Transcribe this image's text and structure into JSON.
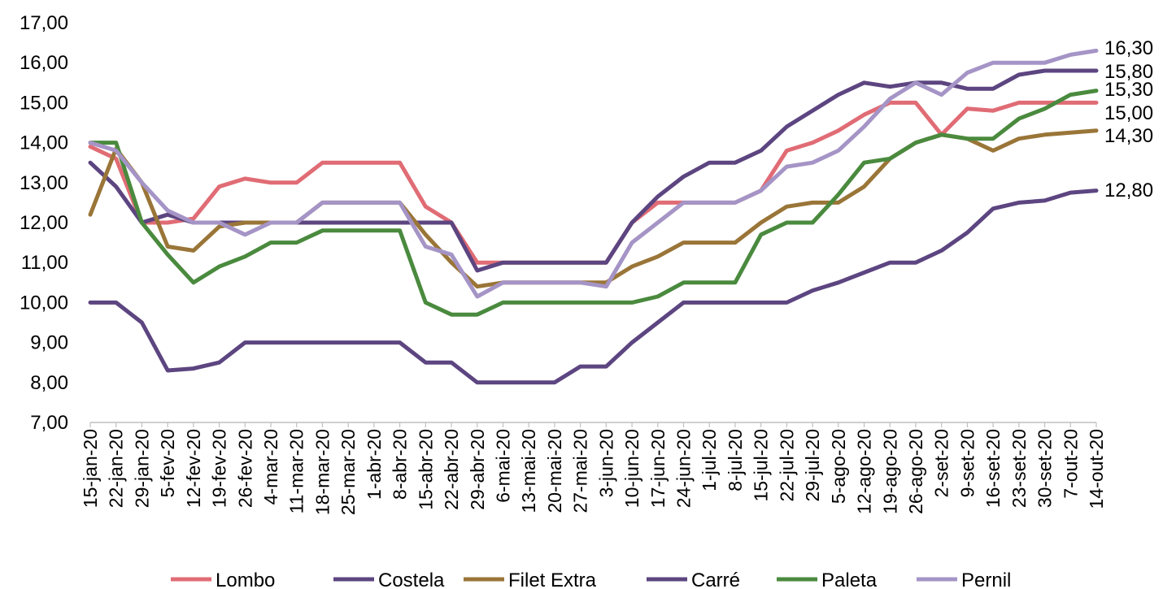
{
  "chart_data": {
    "type": "line",
    "title": "",
    "xlabel": "",
    "ylabel": "",
    "ylim": [
      7,
      17
    ],
    "y_ticks": [
      "7,00",
      "8,00",
      "9,00",
      "10,00",
      "11,00",
      "12,00",
      "13,00",
      "14,00",
      "15,00",
      "16,00",
      "17,00"
    ],
    "grid": false,
    "legend_position": "bottom",
    "categories": [
      "15-jan-20",
      "22-jan-20",
      "29-jan-20",
      "5-fev-20",
      "12-fev-20",
      "19-fev-20",
      "26-fev-20",
      "4-mar-20",
      "11-mar-20",
      "18-mar-20",
      "25-mar-20",
      "1-abr-20",
      "8-abr-20",
      "15-abr-20",
      "22-abr-20",
      "29-abr-20",
      "6-mai-20",
      "13-mai-20",
      "20-mai-20",
      "27-mai-20",
      "3-jun-20",
      "10-jun-20",
      "17-jun-20",
      "24-jun-20",
      "1-jul-20",
      "8-jul-20",
      "15-jul-20",
      "22-jul-20",
      "29-jul-20",
      "5-ago-20",
      "12-ago-20",
      "19-ago-20",
      "26-ago-20",
      "2-set-20",
      "9-set-20",
      "16-set-20",
      "23-set-20",
      "30-set-20",
      "7-out-20",
      "14-out-20"
    ],
    "series": [
      {
        "name": "Lombo",
        "color": "#E06C75",
        "end_label": "15,00",
        "values": [
          13.9,
          13.6,
          12.0,
          12.0,
          12.1,
          12.9,
          13.1,
          13.0,
          13.0,
          13.5,
          13.5,
          13.5,
          13.5,
          12.4,
          12.0,
          11.0,
          11.0,
          11.0,
          11.0,
          11.0,
          11.0,
          12.0,
          12.5,
          12.5,
          12.5,
          12.5,
          12.8,
          13.8,
          14.0,
          14.3,
          14.7,
          15.0,
          15.0,
          14.2,
          14.85,
          14.8,
          15.0,
          15.0,
          15.0,
          15.0
        ]
      },
      {
        "name": "Costela",
        "color": "#5C4580",
        "end_label": "15,80",
        "values": [
          13.5,
          12.9,
          12.0,
          12.2,
          12.0,
          12.0,
          12.0,
          12.0,
          12.0,
          12.0,
          12.0,
          12.0,
          12.0,
          12.0,
          12.0,
          10.8,
          11.0,
          11.0,
          11.0,
          11.0,
          11.0,
          12.0,
          12.65,
          13.15,
          13.5,
          13.5,
          13.8,
          14.4,
          14.8,
          15.2,
          15.5,
          15.4,
          15.5,
          15.5,
          15.35,
          15.35,
          15.7,
          15.8,
          15.8,
          15.8
        ]
      },
      {
        "name": "Filet Extra",
        "color": "#9A7538",
        "end_label": "14,30",
        "values": [
          12.2,
          13.85,
          13.0,
          11.4,
          11.3,
          11.9,
          12.0,
          12.0,
          12.0,
          12.5,
          12.5,
          12.5,
          12.5,
          11.7,
          11.0,
          10.4,
          10.5,
          10.5,
          10.5,
          10.5,
          10.5,
          10.9,
          11.15,
          11.5,
          11.5,
          11.5,
          12.0,
          12.4,
          12.5,
          12.5,
          12.9,
          13.6,
          14.0,
          14.2,
          14.1,
          13.8,
          14.1,
          14.2,
          14.25,
          14.3
        ]
      },
      {
        "name": "Carré",
        "color": "#5C4580",
        "end_label": "12,80",
        "values": [
          10.0,
          10.0,
          9.5,
          8.3,
          8.35,
          8.5,
          9.0,
          9.0,
          9.0,
          9.0,
          9.0,
          9.0,
          9.0,
          8.5,
          8.5,
          8.0,
          8.0,
          8.0,
          8.0,
          8.4,
          8.4,
          9.0,
          9.5,
          10.0,
          10.0,
          10.0,
          10.0,
          10.0,
          10.3,
          10.5,
          10.75,
          11.0,
          11.0,
          11.3,
          11.75,
          12.35,
          12.5,
          12.55,
          12.75,
          12.8
        ]
      },
      {
        "name": "Paleta",
        "color": "#4A8A3E",
        "end_label": "15,30",
        "values": [
          14.0,
          14.0,
          12.0,
          11.2,
          10.5,
          10.9,
          11.15,
          11.5,
          11.5,
          11.8,
          11.8,
          11.8,
          11.8,
          10.0,
          9.7,
          9.7,
          10.0,
          10.0,
          10.0,
          10.0,
          10.0,
          10.0,
          10.15,
          10.5,
          10.5,
          10.5,
          11.7,
          12.0,
          12.0,
          12.7,
          13.5,
          13.6,
          14.0,
          14.2,
          14.1,
          14.1,
          14.6,
          14.85,
          15.2,
          15.3
        ]
      },
      {
        "name": "Pernil",
        "color": "#A594C6",
        "end_label": "16,30",
        "values": [
          14.0,
          13.8,
          13.0,
          12.3,
          12.0,
          12.0,
          11.7,
          12.0,
          12.0,
          12.5,
          12.5,
          12.5,
          12.5,
          11.4,
          11.2,
          10.15,
          10.5,
          10.5,
          10.5,
          10.5,
          10.4,
          11.5,
          12.0,
          12.5,
          12.5,
          12.5,
          12.8,
          13.4,
          13.5,
          13.8,
          14.4,
          15.1,
          15.5,
          15.2,
          15.75,
          16.0,
          16.0,
          16.0,
          16.2,
          16.3
        ]
      }
    ]
  }
}
